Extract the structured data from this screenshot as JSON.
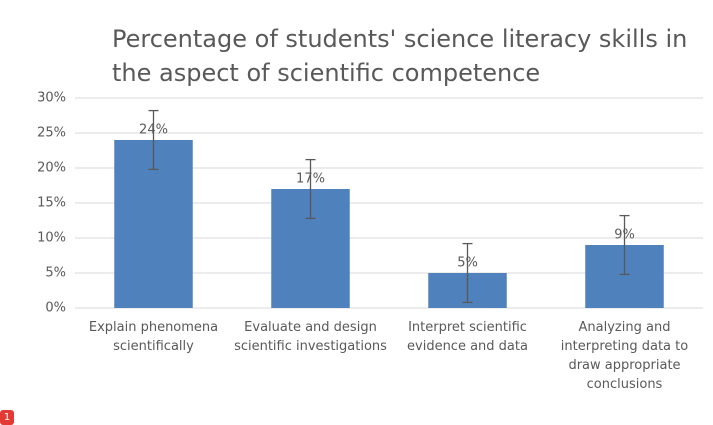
{
  "chart_data": {
    "type": "bar",
    "title": "Percentage of students' science literacy skills in the aspect of scientific competence",
    "categories": [
      "Explain phenomena scientifically",
      "Evaluate and design scientific investigations",
      "Interpret scientific evidence and data",
      "Analyzing and interpreting data to draw appropriate conclusions"
    ],
    "values": [
      24,
      17,
      5,
      9
    ],
    "value_labels": [
      "24%",
      "17%",
      "5%",
      "9%"
    ],
    "errors": [
      4.2,
      4.2,
      4.2,
      4.2
    ],
    "color": "#4f81bd",
    "ylim": [
      0,
      30
    ],
    "yticks": [
      {
        "value": 0,
        "label": "0%"
      },
      {
        "value": 5,
        "label": "5%"
      },
      {
        "value": 10,
        "label": "10%"
      },
      {
        "value": 15,
        "label": "15%"
      },
      {
        "value": 20,
        "label": "20%"
      },
      {
        "value": 25,
        "label": "25%"
      },
      {
        "value": 30,
        "label": "30%"
      }
    ],
    "grid": true
  },
  "badge": "1"
}
